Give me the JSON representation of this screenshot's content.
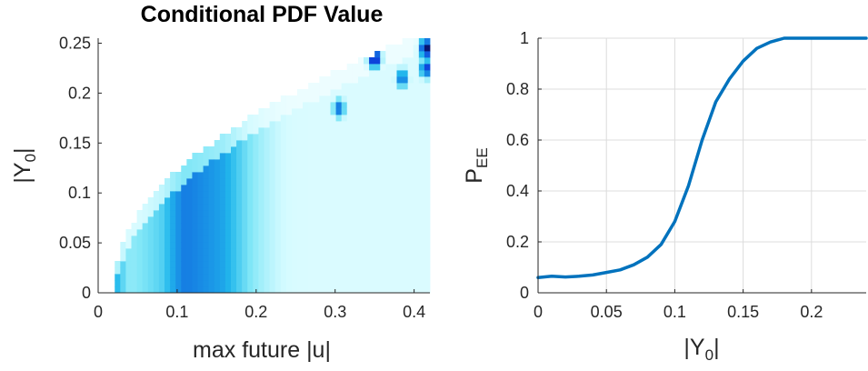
{
  "chart_data": [
    {
      "type": "heatmap",
      "title": "Conditional PDF Value",
      "xlabel": "max future |u|",
      "ylabel_base": "|Y",
      "ylabel_sub": "0",
      "ylabel_close": "|",
      "xlim": [
        0,
        0.42
      ],
      "ylim": [
        0,
        0.255
      ],
      "xticks": [
        0,
        0.1,
        0.2,
        0.3,
        0.4
      ],
      "xtick_labels": [
        "0",
        "0.1",
        "0.2",
        "0.3",
        "0.4"
      ],
      "yticks": [
        0,
        0.05,
        0.1,
        0.15,
        0.2,
        0.25
      ],
      "ytick_labels": [
        "0",
        "0.05",
        "0.1",
        "0.15",
        "0.2",
        "0.25"
      ],
      "colormap": [
        "#ffffff",
        "#d6fbff",
        "#7fe6f7",
        "#22b8ec",
        "#1478e2",
        "#0a2ad8",
        "#08105a"
      ],
      "ridge": [
        [
          0.04,
          0.0
        ],
        [
          0.08,
          0.05
        ],
        [
          0.11,
          0.1
        ],
        [
          0.16,
          0.14
        ],
        [
          0.22,
          0.17
        ],
        [
          0.29,
          0.19
        ],
        [
          0.35,
          0.215
        ],
        [
          0.42,
          0.235
        ]
      ],
      "hotspots": [
        {
          "x": 0.35,
          "y": 0.235,
          "v": 0.95
        },
        {
          "x": 0.415,
          "y": 0.245,
          "v": 1.0
        },
        {
          "x": 0.415,
          "y": 0.225,
          "v": 0.8
        },
        {
          "x": 0.385,
          "y": 0.215,
          "v": 0.72
        },
        {
          "x": 0.305,
          "y": 0.185,
          "v": 0.7
        }
      ],
      "grid": false
    },
    {
      "type": "line",
      "xlabel_base": "|Y",
      "xlabel_sub": "0",
      "xlabel_close": "|",
      "ylabel_base": "P",
      "ylabel_sub": "EE",
      "xlim": [
        0,
        0.24
      ],
      "ylim": [
        0,
        1
      ],
      "xticks": [
        0,
        0.05,
        0.1,
        0.15,
        0.2
      ],
      "xtick_labels": [
        "0",
        "0.05",
        "0.1",
        "0.15",
        "0.2"
      ],
      "yticks": [
        0,
        0.2,
        0.4,
        0.6,
        0.8,
        1
      ],
      "ytick_labels": [
        "0",
        "0.2",
        "0.4",
        "0.6",
        "0.8",
        "1"
      ],
      "grid": true,
      "series": [
        {
          "color": "#0072bd",
          "x": [
            0,
            0.01,
            0.02,
            0.03,
            0.04,
            0.05,
            0.06,
            0.07,
            0.08,
            0.09,
            0.1,
            0.11,
            0.12,
            0.13,
            0.14,
            0.15,
            0.16,
            0.17,
            0.18,
            0.19,
            0.2,
            0.21,
            0.22,
            0.23,
            0.24
          ],
          "y": [
            0.06,
            0.065,
            0.062,
            0.065,
            0.07,
            0.08,
            0.09,
            0.11,
            0.14,
            0.19,
            0.28,
            0.42,
            0.6,
            0.75,
            0.84,
            0.91,
            0.96,
            0.985,
            1.0,
            1.0,
            1.0,
            1.0,
            1.0,
            1.0,
            1.0
          ]
        }
      ]
    }
  ]
}
